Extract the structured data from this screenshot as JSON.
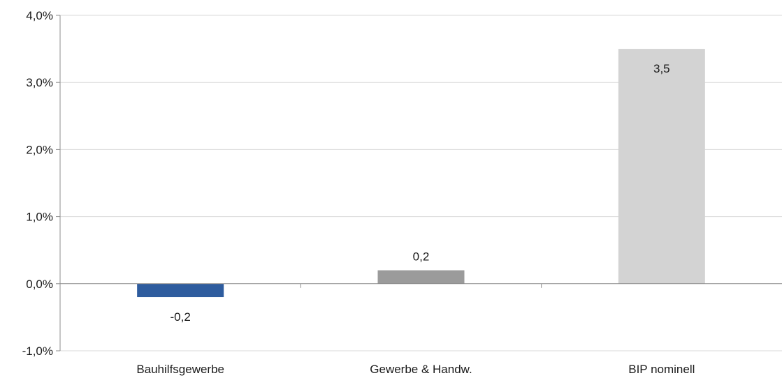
{
  "chart_data": {
    "type": "bar",
    "title": "",
    "xlabel": "",
    "ylabel": "",
    "categories": [
      "Bauhilfsgewerbe",
      "Gewerbe & Handw.",
      "BIP nominell"
    ],
    "values": [
      -0.2,
      0.2,
      3.5
    ],
    "data_labels": [
      "-0,2",
      "0,2",
      "3,5"
    ],
    "bar_colors": [
      "#2e5c9e",
      "#9b9b9b",
      "#d3d3d3"
    ],
    "ylim": [
      -1.0,
      4.0
    ],
    "y_ticks": [
      -1.0,
      0.0,
      1.0,
      2.0,
      3.0,
      4.0
    ],
    "y_tick_labels": [
      "-1,0%",
      "0,0%",
      "1,0%",
      "2,0%",
      "3,0%",
      "4,0%"
    ],
    "grid": true,
    "legend": "none"
  }
}
